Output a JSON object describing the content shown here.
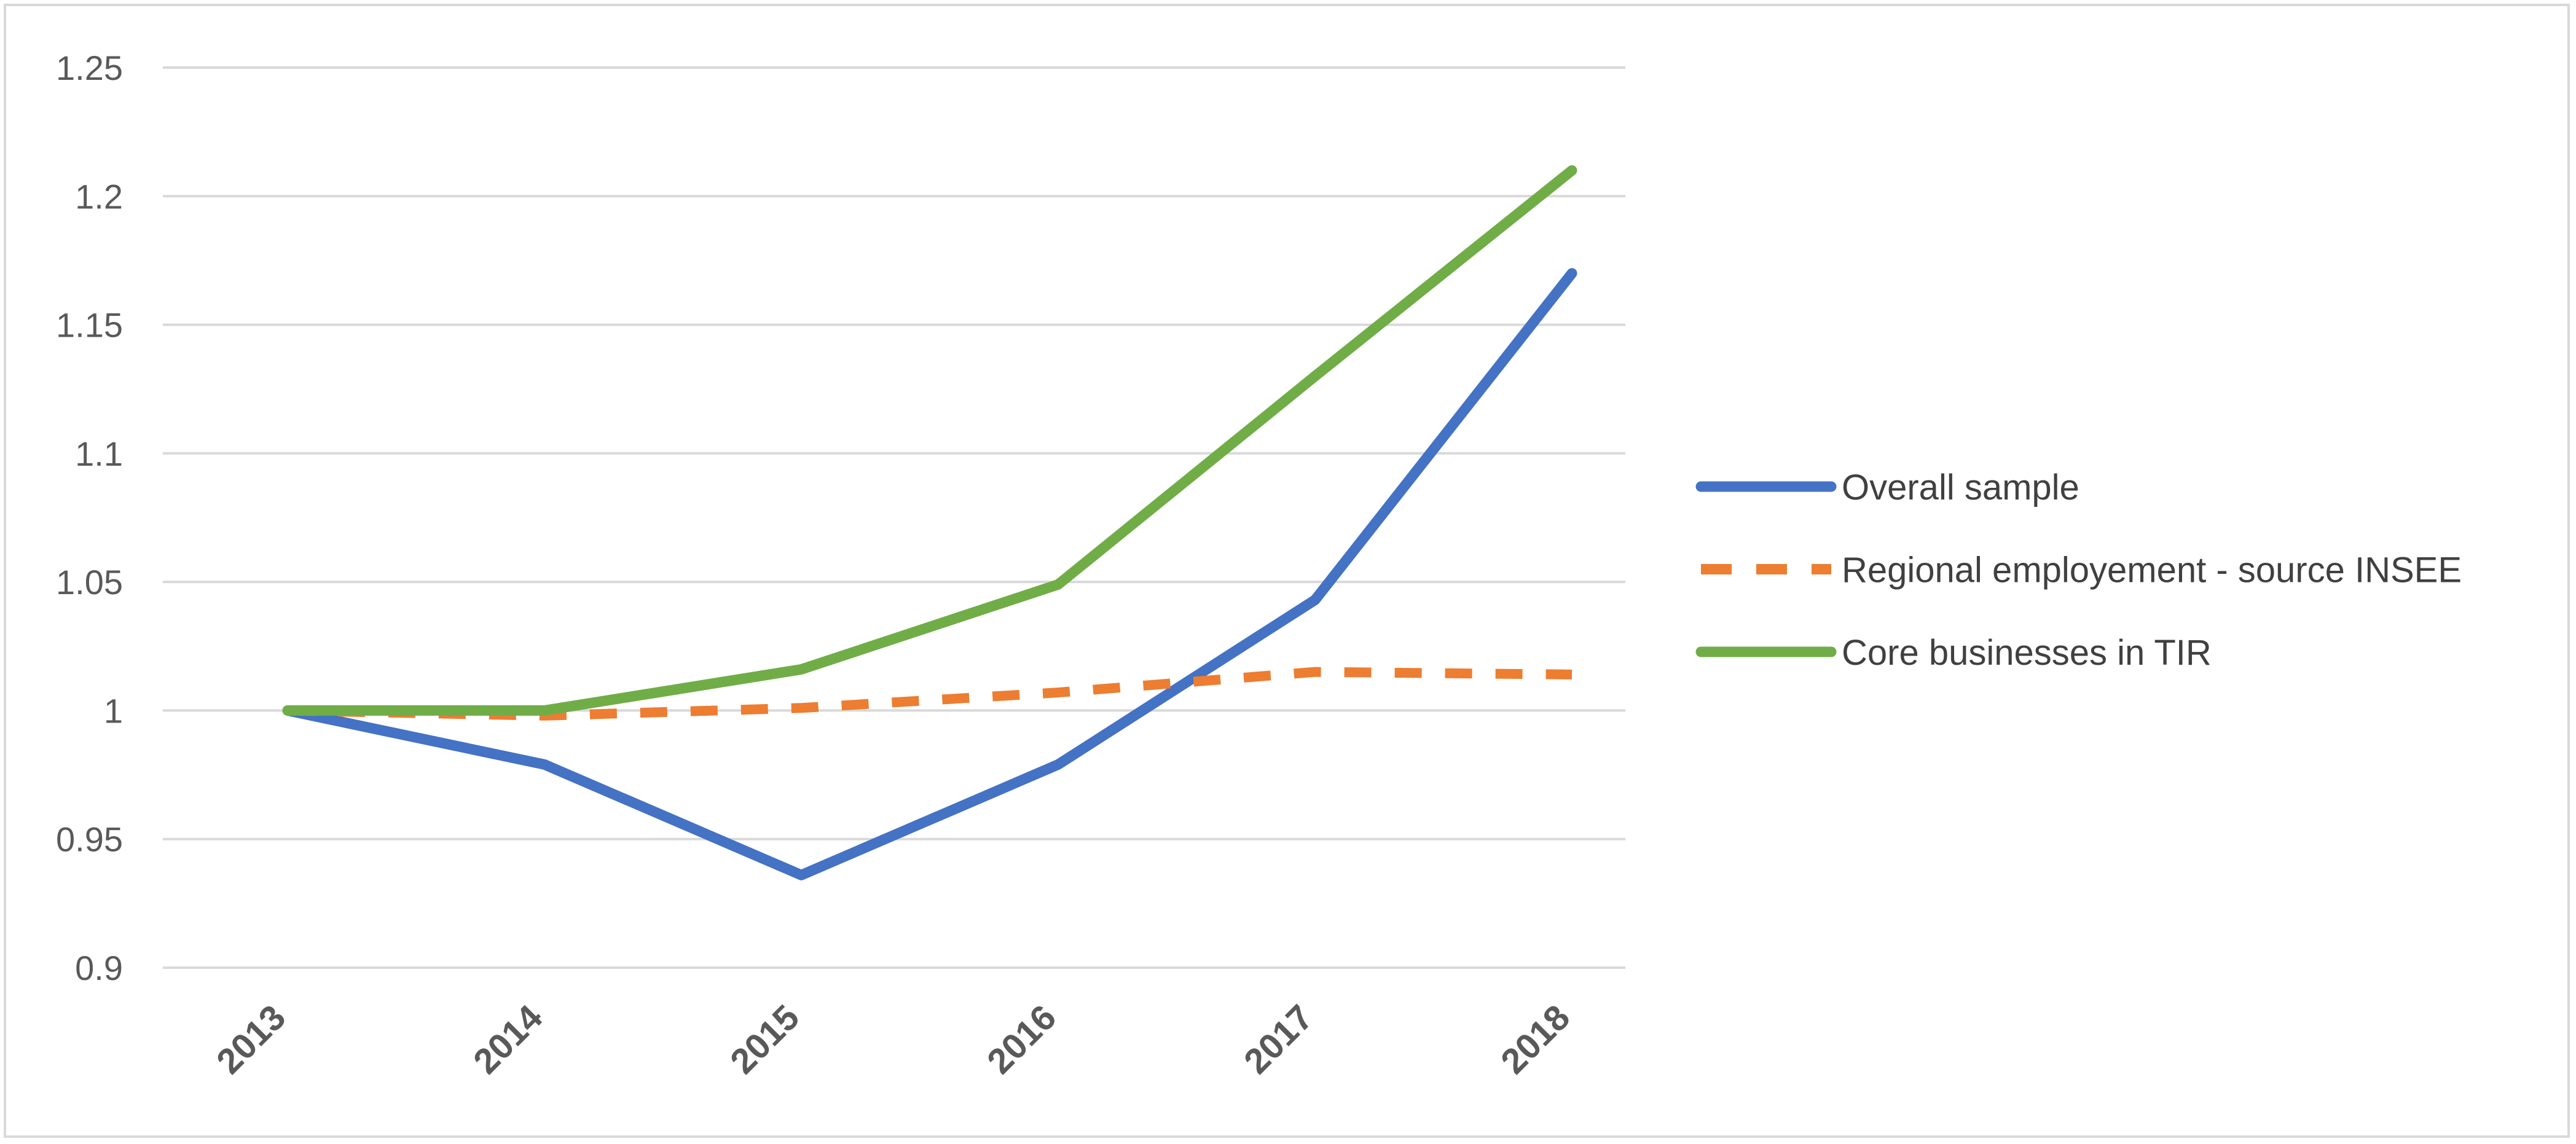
{
  "chart_data": {
    "type": "line",
    "title": "",
    "xlabel": "",
    "ylabel": "",
    "categories": [
      "2013",
      "2014",
      "2015",
      "2016",
      "2017",
      "2018"
    ],
    "ylim": [
      0.9,
      1.25
    ],
    "yticks": [
      0.9,
      0.95,
      1,
      1.05,
      1.1,
      1.15,
      1.2,
      1.25
    ],
    "ytick_labels": [
      "0.9",
      "0.95",
      "1",
      "1.05",
      "1.1",
      "1.15",
      "1.2",
      "1.25"
    ],
    "grid": true,
    "legend_position": "right",
    "series": [
      {
        "name": "Overall sample",
        "values": [
          1.0,
          0.979,
          0.936,
          0.979,
          1.043,
          1.17
        ],
        "color": "#4472c4",
        "style": "solid"
      },
      {
        "name": "Regional employement - source INSEE",
        "values": [
          1.0,
          0.998,
          1.001,
          1.007,
          1.015,
          1.014
        ],
        "color": "#ed7d31",
        "style": "dashed"
      },
      {
        "name": "Core businesses in TIR",
        "values": [
          1.0,
          1.0,
          1.016,
          1.049,
          1.13,
          1.21
        ],
        "color": "#70ad47",
        "style": "solid"
      }
    ]
  }
}
